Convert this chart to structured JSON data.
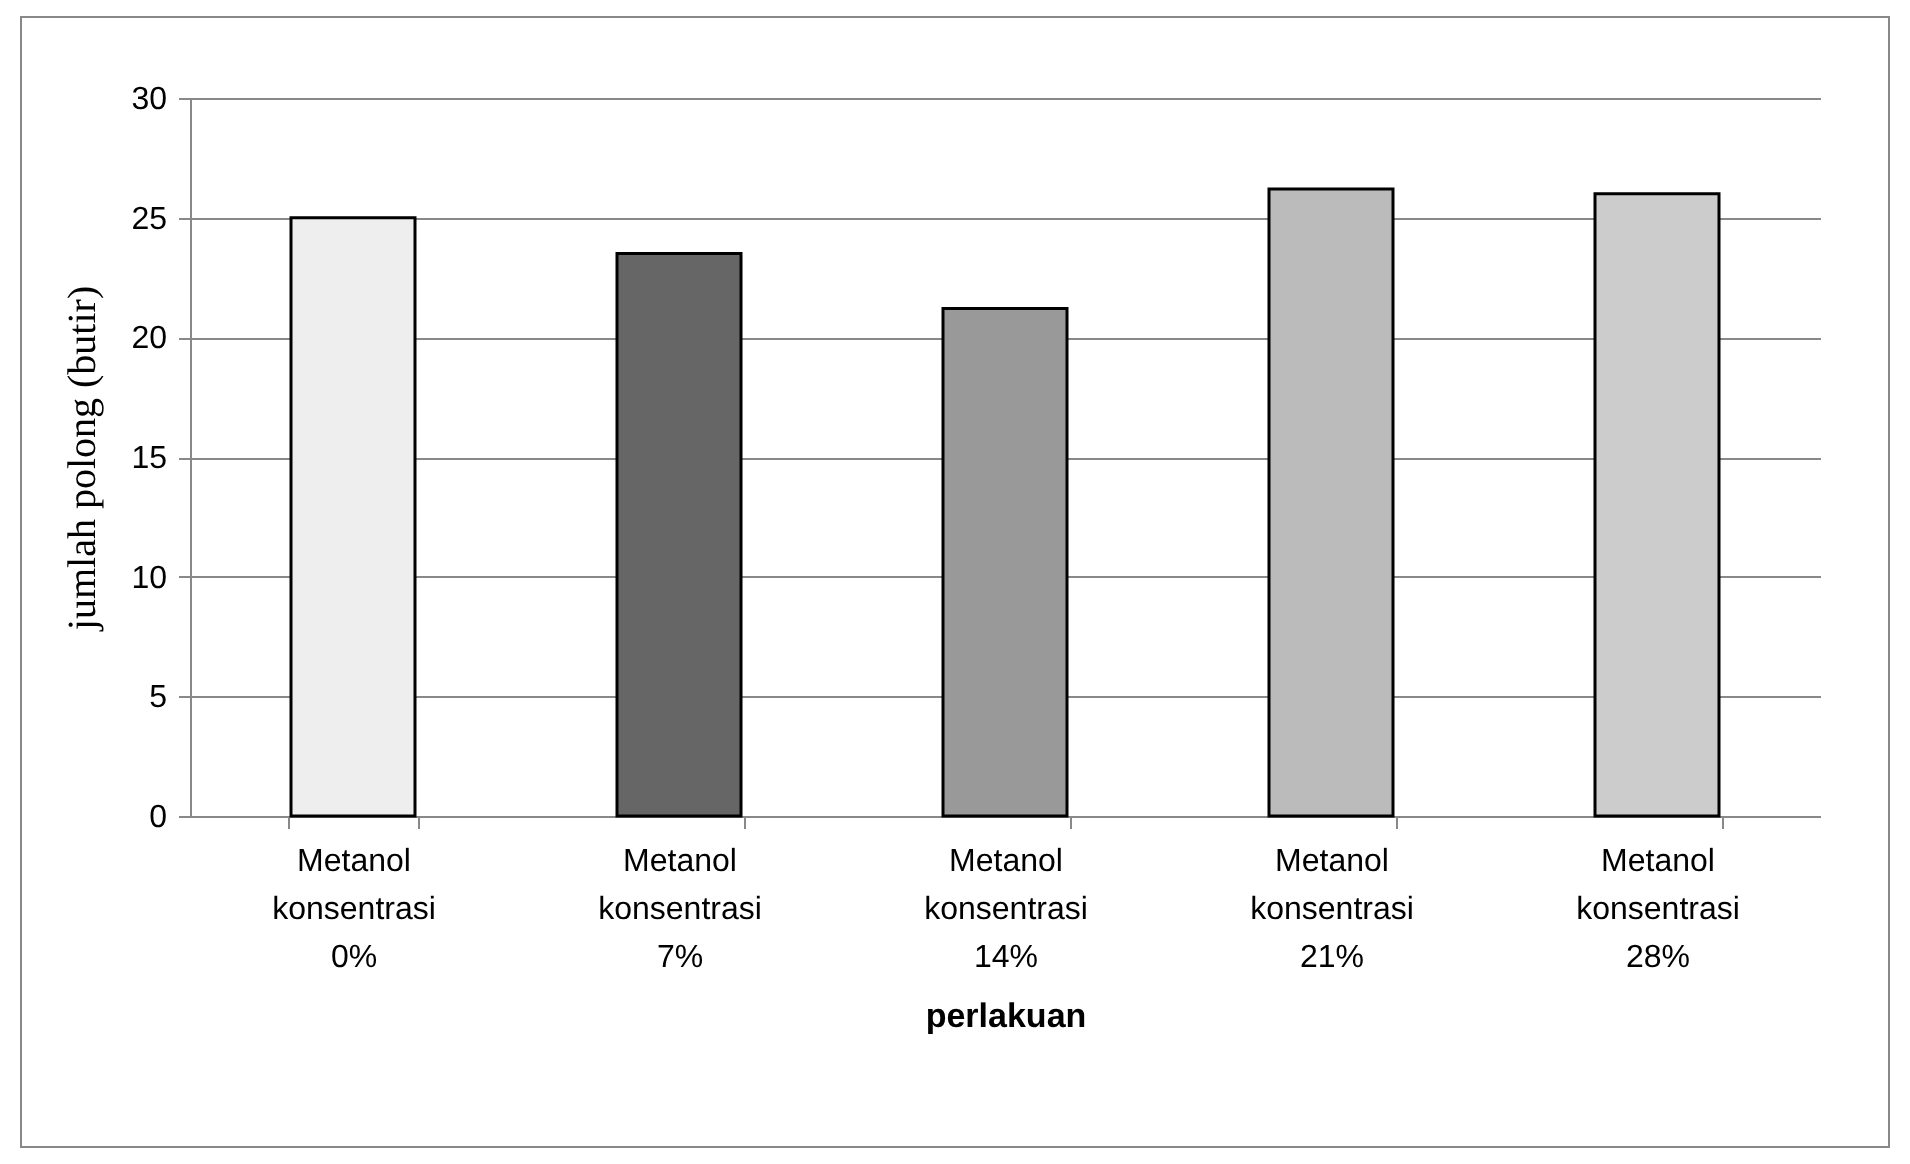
{
  "chart_data": {
    "type": "bar",
    "xlabel": "perlakuan",
    "ylabel": "jumlah polong (butir)",
    "categories": [
      "Metanol konsentrasi 0%",
      "Metanol konsentrasi 7%",
      "Metanol konsentrasi 14%",
      "Metanol konsentrasi 21%",
      "Metanol konsentrasi 28%"
    ],
    "values": [
      25,
      23.5,
      21.2,
      26.2,
      26
    ],
    "colors": [
      "#eeeeee",
      "#666666",
      "#999999",
      "#bbbbbb",
      "#cccccc"
    ],
    "ylim": [
      0,
      30
    ],
    "yticks": [
      0,
      5,
      10,
      15,
      20,
      25,
      30
    ],
    "grid": "y",
    "legend": false
  }
}
